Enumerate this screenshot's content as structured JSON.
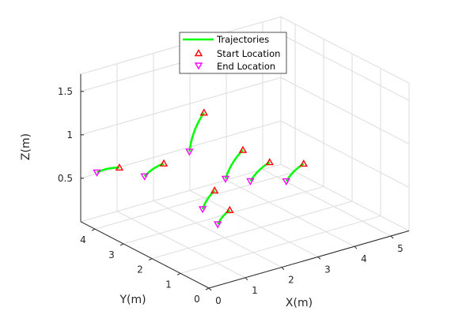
{
  "chart_data": {
    "type": "scatter3d",
    "title": "",
    "xlabel": "X(m)",
    "ylabel": "Y(m)",
    "zlabel": "Z(m)",
    "xlim": [
      0,
      5.5
    ],
    "ylim": [
      0,
      4.5
    ],
    "zlim": [
      0,
      1.7
    ],
    "xticks": [
      "0",
      "1",
      "2",
      "3",
      "4",
      "5"
    ],
    "yticks": [
      "0",
      "1",
      "2",
      "3",
      "4"
    ],
    "zticks": [
      "0.5",
      "1",
      "1.5"
    ],
    "grid": true,
    "legend": {
      "placement": "top-center",
      "entries": [
        "Trajectories",
        "Start Location",
        "End Location"
      ]
    },
    "colors": {
      "trajectory": "#00ff00",
      "start": "#ff0000",
      "end": "#ff00ff",
      "grid": "#dddddd",
      "axis": "#262626"
    },
    "trajectories": [
      {
        "start": [
          0.75,
          4.1,
          0.6
        ],
        "end": [
          0.25,
          4.25,
          0.58
        ]
      },
      {
        "start": [
          1.5,
          3.5,
          0.66
        ],
        "end": [
          1.05,
          3.6,
          0.55
        ]
      },
      {
        "start": [
          1.9,
          2.6,
          1.35
        ],
        "end": [
          1.5,
          2.6,
          0.95
        ]
      },
      {
        "start": [
          2.5,
          2.0,
          0.95
        ],
        "end": [
          2.1,
          2.1,
          0.65
        ]
      },
      {
        "start": [
          1.8,
          2.1,
          0.55
        ],
        "end": [
          1.55,
          2.2,
          0.35
        ]
      },
      {
        "start": [
          3.0,
          1.7,
          0.8
        ],
        "end": [
          2.55,
          1.8,
          0.62
        ]
      },
      {
        "start": [
          3.7,
          1.4,
          0.75
        ],
        "end": [
          3.3,
          1.5,
          0.58
        ]
      },
      {
        "start": [
          1.55,
          1.25,
          0.5
        ],
        "end": [
          1.3,
          1.35,
          0.35
        ]
      }
    ]
  }
}
